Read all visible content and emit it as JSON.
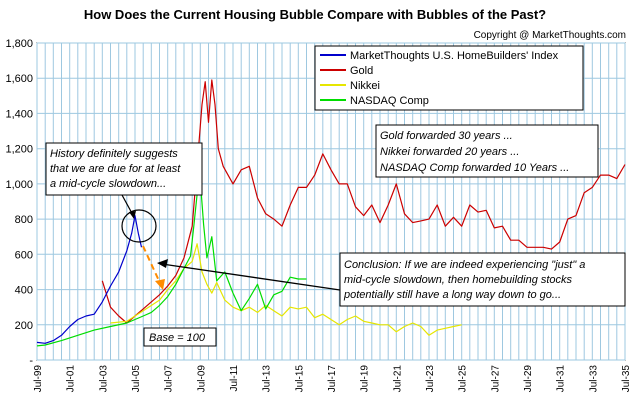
{
  "chart_data": {
    "type": "line",
    "title": "How Does the Current Housing Bubble Compare with Bubbles of the Past?",
    "copyright": "Copyright @ MarketThoughts.com",
    "ylim": [
      0,
      1800
    ],
    "xlim": [
      1999.5,
      2035.5
    ],
    "grid": true,
    "legend_position": "top-right",
    "y_ticks": [
      {
        "value": 0,
        "label": "-"
      },
      {
        "value": 200,
        "label": "200"
      },
      {
        "value": 400,
        "label": "400"
      },
      {
        "value": 600,
        "label": "600"
      },
      {
        "value": 800,
        "label": "800"
      },
      {
        "value": 1000,
        "label": "1,000"
      },
      {
        "value": 1200,
        "label": "1,200"
      },
      {
        "value": 1400,
        "label": "1,400"
      },
      {
        "value": 1600,
        "label": "1,600"
      },
      {
        "value": 1800,
        "label": "1,800"
      }
    ],
    "x_ticks": [
      {
        "value": 1999.5,
        "label": "Jul-99"
      },
      {
        "value": 2001.5,
        "label": "Jul-01"
      },
      {
        "value": 2003.5,
        "label": "Jul-03"
      },
      {
        "value": 2005.5,
        "label": "Jul-05"
      },
      {
        "value": 2007.5,
        "label": "Jul-07"
      },
      {
        "value": 2009.5,
        "label": "Jul-09"
      },
      {
        "value": 2011.5,
        "label": "Jul-11"
      },
      {
        "value": 2013.5,
        "label": "Jul-13"
      },
      {
        "value": 2015.5,
        "label": "Jul-15"
      },
      {
        "value": 2017.5,
        "label": "Jul-17"
      },
      {
        "value": 2019.5,
        "label": "Jul-19"
      },
      {
        "value": 2021.5,
        "label": "Jul-21"
      },
      {
        "value": 2023.5,
        "label": "Jul-23"
      },
      {
        "value": 2025.5,
        "label": "Jul-25"
      },
      {
        "value": 2027.5,
        "label": "Jul-27"
      },
      {
        "value": 2029.5,
        "label": "Jul-29"
      },
      {
        "value": 2031.5,
        "label": "Jul-31"
      },
      {
        "value": 2033.5,
        "label": "Jul-33"
      },
      {
        "value": 2035.5,
        "label": "Jul-35"
      }
    ],
    "series": [
      {
        "name": "MarketThoughts U.S. HomeBuilders' Index",
        "color": "#0000cc",
        "x": [
          1999.5,
          2000.0,
          2000.5,
          2001.0,
          2001.5,
          2002.0,
          2002.5,
          2003.0,
          2003.5,
          2004.0,
          2004.5,
          2005.0,
          2005.3,
          2005.5,
          2005.7,
          2005.9
        ],
        "y": [
          100,
          95,
          110,
          140,
          190,
          230,
          250,
          260,
          330,
          420,
          500,
          620,
          720,
          820,
          720,
          640
        ]
      },
      {
        "name": "Gold",
        "color": "#cc0000",
        "x": [
          2003.5,
          2004.0,
          2004.5,
          2005.0,
          2005.5,
          2006.0,
          2006.5,
          2007.0,
          2007.5,
          2008.0,
          2008.5,
          2009.0,
          2009.3,
          2009.6,
          2009.8,
          2010.0,
          2010.2,
          2010.4,
          2010.6,
          2010.9,
          2011.5,
          2012.0,
          2012.5,
          2013.0,
          2013.5,
          2014.0,
          2014.5,
          2015.0,
          2015.5,
          2016.0,
          2016.5,
          2017.0,
          2017.5,
          2018.0,
          2018.5,
          2019.0,
          2019.5,
          2020.0,
          2020.5,
          2021.0,
          2021.5,
          2022.0,
          2022.5,
          2023.0,
          2023.5,
          2024.0,
          2024.5,
          2025.0,
          2025.5,
          2026.0,
          2026.5,
          2027.0,
          2027.5,
          2028.0,
          2028.5,
          2029.0,
          2029.5,
          2030.0,
          2030.5,
          2031.0,
          2031.5,
          2032.0,
          2032.5,
          2033.0,
          2033.5,
          2034.0,
          2034.5,
          2035.0,
          2035.5
        ],
        "y": [
          450,
          300,
          250,
          210,
          250,
          290,
          330,
          370,
          420,
          480,
          580,
          760,
          1100,
          1450,
          1580,
          1350,
          1590,
          1450,
          1200,
          1100,
          1000,
          1080,
          1100,
          920,
          830,
          800,
          760,
          880,
          980,
          980,
          1050,
          1170,
          1080,
          1000,
          1000,
          870,
          820,
          880,
          780,
          880,
          1000,
          830,
          780,
          790,
          800,
          880,
          760,
          810,
          760,
          880,
          840,
          850,
          750,
          760,
          680,
          680,
          640,
          640,
          640,
          630,
          670,
          800,
          820,
          950,
          980,
          1050,
          1050,
          1030,
          1110
        ]
      },
      {
        "name": "Nikkei",
        "color": "#e6e600",
        "x": [
          2004.0,
          2005.0,
          2006.0,
          2007.0,
          2007.5,
          2008.0,
          2008.5,
          2009.0,
          2009.3,
          2009.6,
          2009.9,
          2010.2,
          2010.5,
          2011.0,
          2011.5,
          2012.0,
          2012.5,
          2013.0,
          2013.5,
          2014.0,
          2014.5,
          2015.0,
          2015.5,
          2016.0,
          2016.5,
          2017.0,
          2017.5,
          2018.0,
          2018.5,
          2019.0,
          2019.5,
          2020.0,
          2020.5,
          2021.0,
          2021.5,
          2022.0,
          2022.5,
          2023.0,
          2023.5,
          2024.0,
          2024.5,
          2025.0,
          2025.5
        ],
        "y": [
          210,
          220,
          280,
          340,
          400,
          450,
          520,
          560,
          660,
          500,
          430,
          380,
          440,
          340,
          300,
          280,
          300,
          270,
          310,
          280,
          250,
          300,
          290,
          300,
          240,
          260,
          230,
          200,
          230,
          250,
          220,
          210,
          200,
          200,
          160,
          190,
          210,
          190,
          140,
          170,
          180,
          190,
          200
        ]
      },
      {
        "name": "NASDAQ Comp",
        "color": "#00dd00",
        "x": [
          1999.5,
          2000.0,
          2001.0,
          2002.0,
          2003.0,
          2004.0,
          2005.0,
          2006.0,
          2006.5,
          2007.0,
          2007.5,
          2008.0,
          2008.5,
          2008.9,
          2009.1,
          2009.3,
          2009.5,
          2009.7,
          2009.9,
          2010.2,
          2010.5,
          2011.0,
          2011.5,
          2012.0,
          2012.5,
          2013.0,
          2013.5,
          2014.0,
          2014.5,
          2015.0,
          2015.5,
          2016.0
        ],
        "y": [
          80,
          85,
          110,
          140,
          170,
          190,
          210,
          250,
          270,
          310,
          360,
          430,
          520,
          590,
          760,
          940,
          1020,
          770,
          580,
          700,
          450,
          500,
          380,
          280,
          350,
          430,
          290,
          370,
          390,
          470,
          460,
          460
        ]
      }
    ],
    "annotations": {
      "history": [
        "History definitely suggests",
        "that we are due for at least",
        "a mid-cycle slowdown..."
      ],
      "forward": [
        "Gold forwarded 30 years ...",
        "Nikkei forwarded 20 years ...",
        "NASDAQ Comp forwarded 10 Years ..."
      ],
      "conclusion": [
        "Conclusion: If we are indeed experiencing \"just\" a",
        "mid-cycle slowdown, then homebuilding stocks",
        "potentially still have a long way down to go..."
      ],
      "base": "Base = 100"
    }
  }
}
